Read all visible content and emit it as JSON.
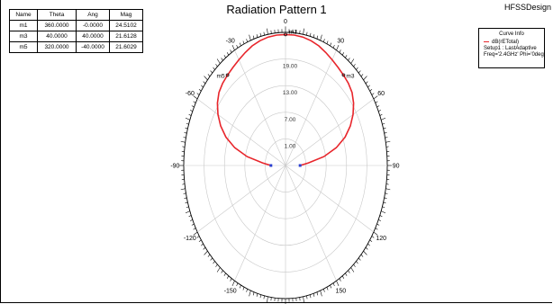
{
  "title": "Radiation Pattern 1",
  "brand": "HFSSDesign",
  "marker_table": {
    "headers": [
      "Name",
      "Theta",
      "Ang",
      "Mag"
    ],
    "rows": [
      [
        "m1",
        "360.0000",
        "-0.0000",
        "24.5102"
      ],
      [
        "m3",
        "40.0000",
        "40.0000",
        "21.6128"
      ],
      [
        "m5",
        "320.0000",
        "-40.0000",
        "21.6029"
      ]
    ]
  },
  "legend": {
    "header": "Curve Info",
    "entry": "dB(rETotal)",
    "setup": "Setup1 : LastAdaptive",
    "freq": "Freq='2.4GHz' Phi='0deg'"
  },
  "chart_data": {
    "type": "polar",
    "title": "Radiation Pattern 1",
    "angle_ticks": [
      "0",
      "30",
      "60",
      "90",
      "120",
      "150",
      "-180",
      "-150",
      "-120",
      "-90",
      "-60",
      "-30"
    ],
    "radial_ticks": [
      "1.00",
      "7.00",
      "13.00",
      "19.00"
    ],
    "radial_range": [
      -5,
      25
    ],
    "grid": true,
    "series": [
      {
        "name": "dB(rETotal)",
        "color": "#e8252b",
        "theta_deg": [
          -90,
          -85,
          -80,
          -75,
          -70,
          -65,
          -60,
          -55,
          -50,
          -45,
          -40,
          -35,
          -30,
          -25,
          -20,
          -15,
          -10,
          -5,
          0,
          5,
          10,
          15,
          20,
          25,
          30,
          35,
          40,
          45,
          50,
          55,
          60,
          65,
          70,
          75,
          80,
          85,
          90
        ],
        "mag_db": [
          -0.7,
          1.8,
          6.5,
          10.5,
          13.7,
          16.1,
          18.0,
          19.5,
          20.6,
          21.2,
          21.6,
          22.0,
          22.5,
          23.1,
          23.7,
          24.1,
          24.4,
          24.5,
          24.51,
          24.5,
          24.4,
          24.1,
          23.7,
          23.1,
          22.5,
          22.0,
          21.6,
          21.2,
          20.6,
          19.5,
          18.0,
          16.1,
          13.7,
          10.5,
          6.5,
          1.8,
          -0.7
        ]
      }
    ],
    "markers": [
      {
        "name": "m1",
        "theta": 0,
        "mag": 24.5102
      },
      {
        "name": "m3",
        "theta": 40,
        "mag": 21.6128
      },
      {
        "name": "m5",
        "theta": -40,
        "mag": 21.6029
      }
    ],
    "marker_labels": [
      "m1",
      "m3",
      "m5"
    ]
  }
}
